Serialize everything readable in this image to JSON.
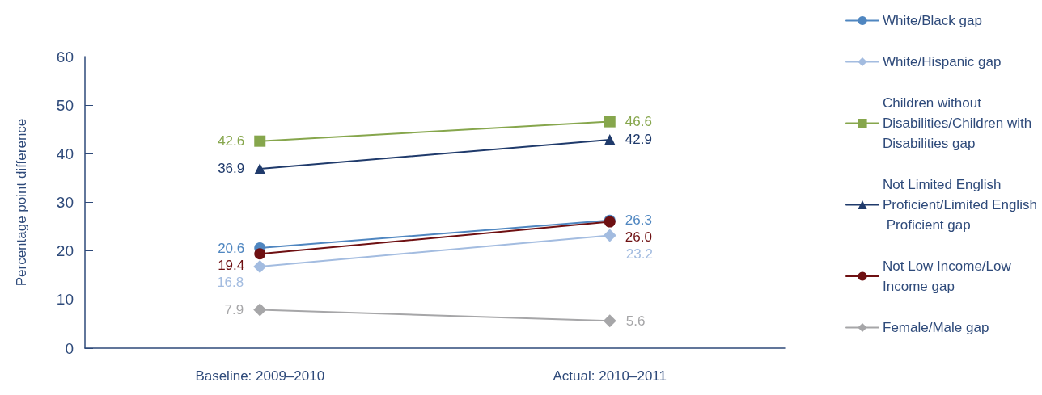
{
  "chart_data": {
    "type": "line",
    "ylabel": "Percentage point difference",
    "categories": [
      "Baseline: 2009–2010",
      "Actual: 2010–2011"
    ],
    "ylim": [
      0,
      60
    ],
    "yticks": [
      0,
      10,
      20,
      30,
      40,
      50,
      60
    ],
    "grid": false,
    "legend": "right",
    "series": [
      {
        "name": "White/Black gap",
        "color": "#4f86c0",
        "marker": "circle",
        "values": [
          20.6,
          26.3
        ],
        "value_labels": [
          "20.6",
          "26.3"
        ]
      },
      {
        "name": "White/Hispanic gap",
        "color": "#a3bce0",
        "marker": "diamond",
        "values": [
          16.8,
          23.2
        ],
        "value_labels": [
          "16.8",
          "23.2"
        ]
      },
      {
        "name": "Children without Disabilities/Children with Disabilities gap",
        "color": "#86a64c",
        "marker": "square",
        "values": [
          42.6,
          46.6
        ],
        "value_labels": [
          "42.6",
          "46.6"
        ]
      },
      {
        "name": "Not Limited English Proficient/Limited English Proficient gap",
        "color": "#1f3a6b",
        "marker": "triangle",
        "values": [
          36.9,
          42.9
        ],
        "value_labels": [
          "36.9",
          "42.9"
        ]
      },
      {
        "name": "Not Low Income/Low Income gap",
        "color": "#6e1012",
        "marker": "circle",
        "values": [
          19.4,
          26.0
        ],
        "value_labels": [
          "19.4",
          "26.0"
        ]
      },
      {
        "name": "Female/Male gap",
        "color": "#a6a6a8",
        "marker": "diamond",
        "values": [
          7.9,
          5.6
        ],
        "value_labels": [
          "7.9",
          "5.6"
        ]
      }
    ]
  }
}
